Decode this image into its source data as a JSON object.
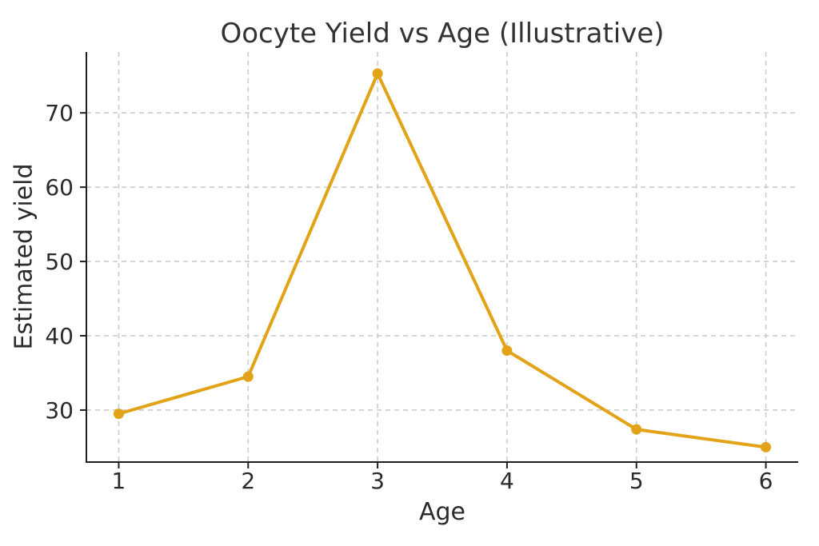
{
  "chart_data": {
    "type": "line",
    "title": "Oocyte Yield vs Age (Illustrative)",
    "xlabel": "Age",
    "ylabel": "Estimated yield",
    "x": [
      1,
      2,
      3,
      4,
      5,
      6
    ],
    "series": [
      {
        "name": "Estimated yield",
        "values": [
          29.5,
          34.5,
          75.3,
          38.0,
          27.4,
          25.0
        ]
      }
    ],
    "x_ticks": [
      "1",
      "2",
      "3",
      "4",
      "5",
      "6"
    ],
    "y_ticks": [
      "30",
      "40",
      "50",
      "60",
      "70"
    ],
    "x_tick_values": [
      1,
      2,
      3,
      4,
      5,
      6
    ],
    "y_tick_values": [
      30,
      40,
      50,
      60,
      70
    ],
    "xlim": [
      0.75,
      6.25
    ],
    "ylim": [
      23.0,
      78.2
    ],
    "grid": "dashed",
    "legend": "none",
    "colors": {
      "line": "#E3A318",
      "marker": "#E3A318",
      "grid": "#cccccc",
      "axis": "#1f1f1f",
      "text": "#2b2b2b",
      "title": "#333333",
      "background": "#ffffff"
    }
  }
}
